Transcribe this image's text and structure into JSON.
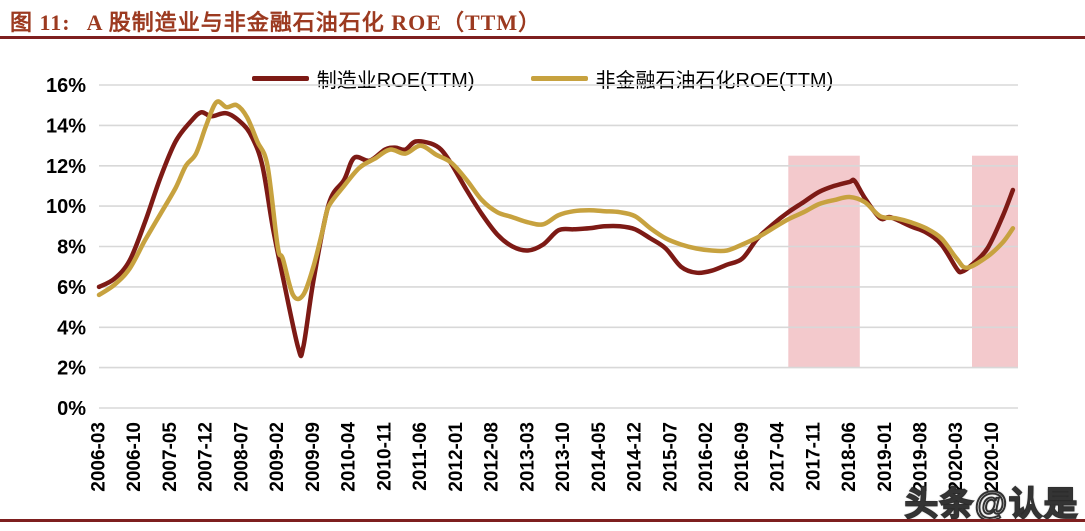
{
  "page": {
    "title_prefix": "图 11:",
    "title_text": "A 股制造业与非金融石油石化 ROE（TTM）",
    "watermark": "头条@认是"
  },
  "colors": {
    "title": "#9c3a20",
    "rule": "#7e1f1f",
    "grid": "#d8d8d8",
    "axis_text": "#000000",
    "series_manufacturing": "#7d1a15",
    "series_petrochemical": "#c7a23f",
    "highlight_band": "#f3c9cc"
  },
  "chart_data": {
    "type": "line",
    "title": "A 股制造业与非金融石油石化 ROE（TTM）",
    "xlabel": "",
    "ylabel": "",
    "grid": "horizontal",
    "legend_position": "top",
    "y_axis": {
      "min": 0,
      "max": 16,
      "step": 2,
      "format": "percent",
      "tick_labels": [
        "16%",
        "14%",
        "12%",
        "10%",
        "8%",
        "6%",
        "4%",
        "2%",
        "0%"
      ]
    },
    "x_axis": {
      "start": "2006-03",
      "end": "2021-03",
      "tick_interval_months": 7,
      "tick_labels": [
        "2006-03",
        "2006-10",
        "2007-05",
        "2007-12",
        "2008-07",
        "2009-02",
        "2009-09",
        "2010-04",
        "2010-11",
        "2011-06",
        "2012-01",
        "2012-08",
        "2013-03",
        "2013-10",
        "2014-05",
        "2014-12",
        "2015-07",
        "2016-02",
        "2016-09",
        "2017-04",
        "2017-11",
        "2018-06",
        "2019-01",
        "2019-08",
        "2020-03",
        "2020-10"
      ]
    },
    "highlight_bands": [
      {
        "from": "2017-06",
        "to": "2018-08",
        "y_range_pct": [
          2,
          12.5
        ],
        "color": "#f3c9cc"
      },
      {
        "from": "2020-06",
        "to": "2021-03",
        "y_range_pct": [
          2,
          12.5
        ],
        "color": "#f3c9cc"
      }
    ],
    "series": [
      {
        "name": "制造业ROE(TTM)",
        "color": "#7d1a15",
        "points": [
          [
            "2006-03",
            6.0
          ],
          [
            "2006-06",
            6.4
          ],
          [
            "2006-09",
            7.3
          ],
          [
            "2006-12",
            9.2
          ],
          [
            "2007-03",
            11.4
          ],
          [
            "2007-06",
            13.2
          ],
          [
            "2007-09",
            14.2
          ],
          [
            "2007-11",
            14.65
          ],
          [
            "2008-01",
            14.45
          ],
          [
            "2008-04",
            14.6
          ],
          [
            "2008-07",
            14.1
          ],
          [
            "2008-09",
            13.4
          ],
          [
            "2008-11",
            12.0
          ],
          [
            "2009-01",
            9.0
          ],
          [
            "2009-03",
            6.5
          ],
          [
            "2009-06",
            3.0
          ],
          [
            "2009-07",
            3.0
          ],
          [
            "2009-09",
            6.3
          ],
          [
            "2009-12",
            10.1
          ],
          [
            "2010-03",
            11.3
          ],
          [
            "2010-05",
            12.4
          ],
          [
            "2010-08",
            12.25
          ],
          [
            "2010-11",
            12.8
          ],
          [
            "2011-01",
            12.9
          ],
          [
            "2011-03",
            12.8
          ],
          [
            "2011-05",
            13.2
          ],
          [
            "2011-08",
            13.1
          ],
          [
            "2011-10",
            12.8
          ],
          [
            "2011-12",
            12.1
          ],
          [
            "2012-03",
            10.8
          ],
          [
            "2012-06",
            9.6
          ],
          [
            "2012-09",
            8.6
          ],
          [
            "2012-12",
            8.0
          ],
          [
            "2013-03",
            7.8
          ],
          [
            "2013-06",
            8.1
          ],
          [
            "2013-09",
            8.8
          ],
          [
            "2013-12",
            8.85
          ],
          [
            "2014-03",
            8.9
          ],
          [
            "2014-06",
            9.0
          ],
          [
            "2014-09",
            9.0
          ],
          [
            "2014-12",
            8.85
          ],
          [
            "2015-03",
            8.4
          ],
          [
            "2015-06",
            7.9
          ],
          [
            "2015-09",
            7.0
          ],
          [
            "2015-12",
            6.7
          ],
          [
            "2016-03",
            6.8
          ],
          [
            "2016-06",
            7.1
          ],
          [
            "2016-09",
            7.4
          ],
          [
            "2016-12",
            8.4
          ],
          [
            "2017-03",
            9.1
          ],
          [
            "2017-06",
            9.7
          ],
          [
            "2017-09",
            10.2
          ],
          [
            "2017-12",
            10.7
          ],
          [
            "2018-03",
            11.0
          ],
          [
            "2018-06",
            11.2
          ],
          [
            "2018-07",
            11.25
          ],
          [
            "2018-09",
            10.4
          ],
          [
            "2018-12",
            9.4
          ],
          [
            "2019-02",
            9.45
          ],
          [
            "2019-06",
            9.0
          ],
          [
            "2019-09",
            8.7
          ],
          [
            "2019-12",
            8.1
          ],
          [
            "2020-03",
            6.9
          ],
          [
            "2020-04",
            6.75
          ],
          [
            "2020-06",
            7.1
          ],
          [
            "2020-09",
            7.9
          ],
          [
            "2020-12",
            9.5
          ],
          [
            "2021-02",
            10.8
          ]
        ]
      },
      {
        "name": "非金融石油石化ROE(TTM)",
        "color": "#c7a23f",
        "points": [
          [
            "2006-03",
            5.6
          ],
          [
            "2006-06",
            6.1
          ],
          [
            "2006-09",
            6.9
          ],
          [
            "2006-12",
            8.3
          ],
          [
            "2007-03",
            9.6
          ],
          [
            "2007-06",
            10.9
          ],
          [
            "2007-08",
            12.0
          ],
          [
            "2007-10",
            12.6
          ],
          [
            "2007-12",
            14.0
          ],
          [
            "2008-02",
            15.15
          ],
          [
            "2008-04",
            14.9
          ],
          [
            "2008-06",
            15.0
          ],
          [
            "2008-08",
            14.4
          ],
          [
            "2008-10",
            13.2
          ],
          [
            "2008-12",
            12.0
          ],
          [
            "2009-02",
            8.0
          ],
          [
            "2009-03",
            7.4
          ],
          [
            "2009-05",
            5.6
          ],
          [
            "2009-07",
            5.6
          ],
          [
            "2009-09",
            7.0
          ],
          [
            "2009-11",
            9.0
          ],
          [
            "2009-12",
            10.0
          ],
          [
            "2010-03",
            11.0
          ],
          [
            "2010-06",
            11.9
          ],
          [
            "2010-09",
            12.35
          ],
          [
            "2010-12",
            12.8
          ],
          [
            "2011-03",
            12.6
          ],
          [
            "2011-06",
            13.0
          ],
          [
            "2011-09",
            12.55
          ],
          [
            "2011-12",
            12.15
          ],
          [
            "2012-03",
            11.3
          ],
          [
            "2012-06",
            10.3
          ],
          [
            "2012-09",
            9.7
          ],
          [
            "2012-12",
            9.45
          ],
          [
            "2013-03",
            9.2
          ],
          [
            "2013-06",
            9.1
          ],
          [
            "2013-09",
            9.55
          ],
          [
            "2013-12",
            9.75
          ],
          [
            "2014-03",
            9.8
          ],
          [
            "2014-06",
            9.75
          ],
          [
            "2014-09",
            9.7
          ],
          [
            "2014-12",
            9.5
          ],
          [
            "2015-03",
            8.9
          ],
          [
            "2015-06",
            8.4
          ],
          [
            "2015-09",
            8.1
          ],
          [
            "2015-12",
            7.9
          ],
          [
            "2016-03",
            7.8
          ],
          [
            "2016-06",
            7.8
          ],
          [
            "2016-09",
            8.1
          ],
          [
            "2016-12",
            8.45
          ],
          [
            "2017-03",
            8.9
          ],
          [
            "2017-06",
            9.35
          ],
          [
            "2017-09",
            9.7
          ],
          [
            "2017-12",
            10.1
          ],
          [
            "2018-03",
            10.3
          ],
          [
            "2018-06",
            10.45
          ],
          [
            "2018-09",
            10.2
          ],
          [
            "2018-12",
            9.5
          ],
          [
            "2019-03",
            9.4
          ],
          [
            "2019-06",
            9.2
          ],
          [
            "2019-09",
            8.9
          ],
          [
            "2019-12",
            8.4
          ],
          [
            "2020-03",
            7.4
          ],
          [
            "2020-05",
            6.95
          ],
          [
            "2020-09",
            7.5
          ],
          [
            "2020-12",
            8.2
          ],
          [
            "2021-02",
            8.9
          ]
        ]
      }
    ]
  }
}
